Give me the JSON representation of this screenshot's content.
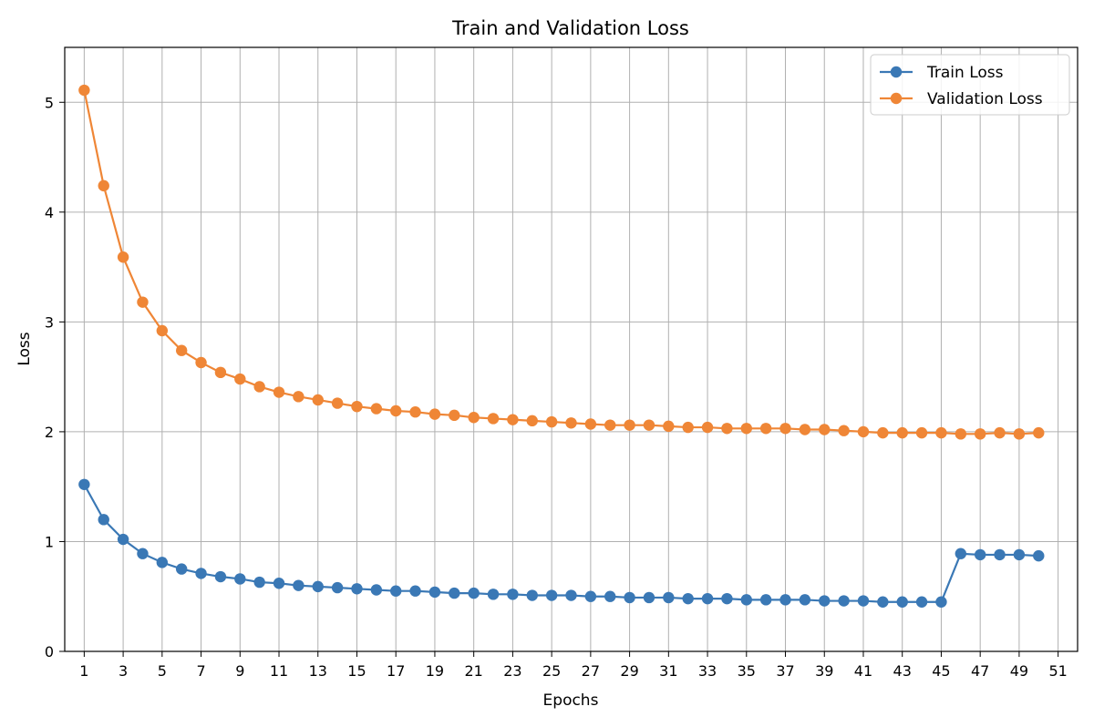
{
  "chart_data": {
    "type": "line",
    "title": "Train and Validation Loss",
    "xlabel": "Epochs",
    "ylabel": "Loss",
    "xlim": [
      0,
      52
    ],
    "ylim": [
      0,
      5.5
    ],
    "x_ticks": [
      1,
      3,
      5,
      7,
      9,
      11,
      13,
      15,
      17,
      19,
      21,
      23,
      25,
      27,
      29,
      31,
      33,
      35,
      37,
      39,
      41,
      43,
      45,
      47,
      49,
      51
    ],
    "y_ticks": [
      0,
      1,
      2,
      3,
      4,
      5
    ],
    "grid": true,
    "legend_position": "top-right",
    "x": [
      1,
      2,
      3,
      4,
      5,
      6,
      7,
      8,
      9,
      10,
      11,
      12,
      13,
      14,
      15,
      16,
      17,
      18,
      19,
      20,
      21,
      22,
      23,
      24,
      25,
      26,
      27,
      28,
      29,
      30,
      31,
      32,
      33,
      34,
      35,
      36,
      37,
      38,
      39,
      40,
      41,
      42,
      43,
      44,
      45,
      46,
      47,
      48,
      49,
      50
    ],
    "series": [
      {
        "name": "Train Loss",
        "color": "#3a78b5",
        "values": [
          1.52,
          1.2,
          1.02,
          0.89,
          0.81,
          0.75,
          0.71,
          0.68,
          0.66,
          0.63,
          0.62,
          0.6,
          0.59,
          0.58,
          0.57,
          0.56,
          0.55,
          0.55,
          0.54,
          0.53,
          0.53,
          0.52,
          0.52,
          0.51,
          0.51,
          0.51,
          0.5,
          0.5,
          0.49,
          0.49,
          0.49,
          0.48,
          0.48,
          0.48,
          0.47,
          0.47,
          0.47,
          0.47,
          0.46,
          0.46,
          0.46,
          0.45,
          0.45,
          0.45,
          0.45,
          0.89,
          0.88,
          0.88,
          0.88,
          0.87
        ]
      },
      {
        "name": "Validation Loss",
        "color": "#ef8636",
        "values": [
          5.11,
          4.24,
          3.59,
          3.18,
          2.92,
          2.74,
          2.63,
          2.54,
          2.48,
          2.41,
          2.36,
          2.32,
          2.29,
          2.26,
          2.23,
          2.21,
          2.19,
          2.18,
          2.16,
          2.15,
          2.13,
          2.12,
          2.11,
          2.1,
          2.09,
          2.08,
          2.07,
          2.06,
          2.06,
          2.06,
          2.05,
          2.04,
          2.04,
          2.03,
          2.03,
          2.03,
          2.03,
          2.02,
          2.02,
          2.01,
          2.0,
          1.99,
          1.99,
          1.99,
          1.99,
          1.98,
          1.98,
          1.99,
          1.98,
          1.99
        ]
      }
    ]
  }
}
